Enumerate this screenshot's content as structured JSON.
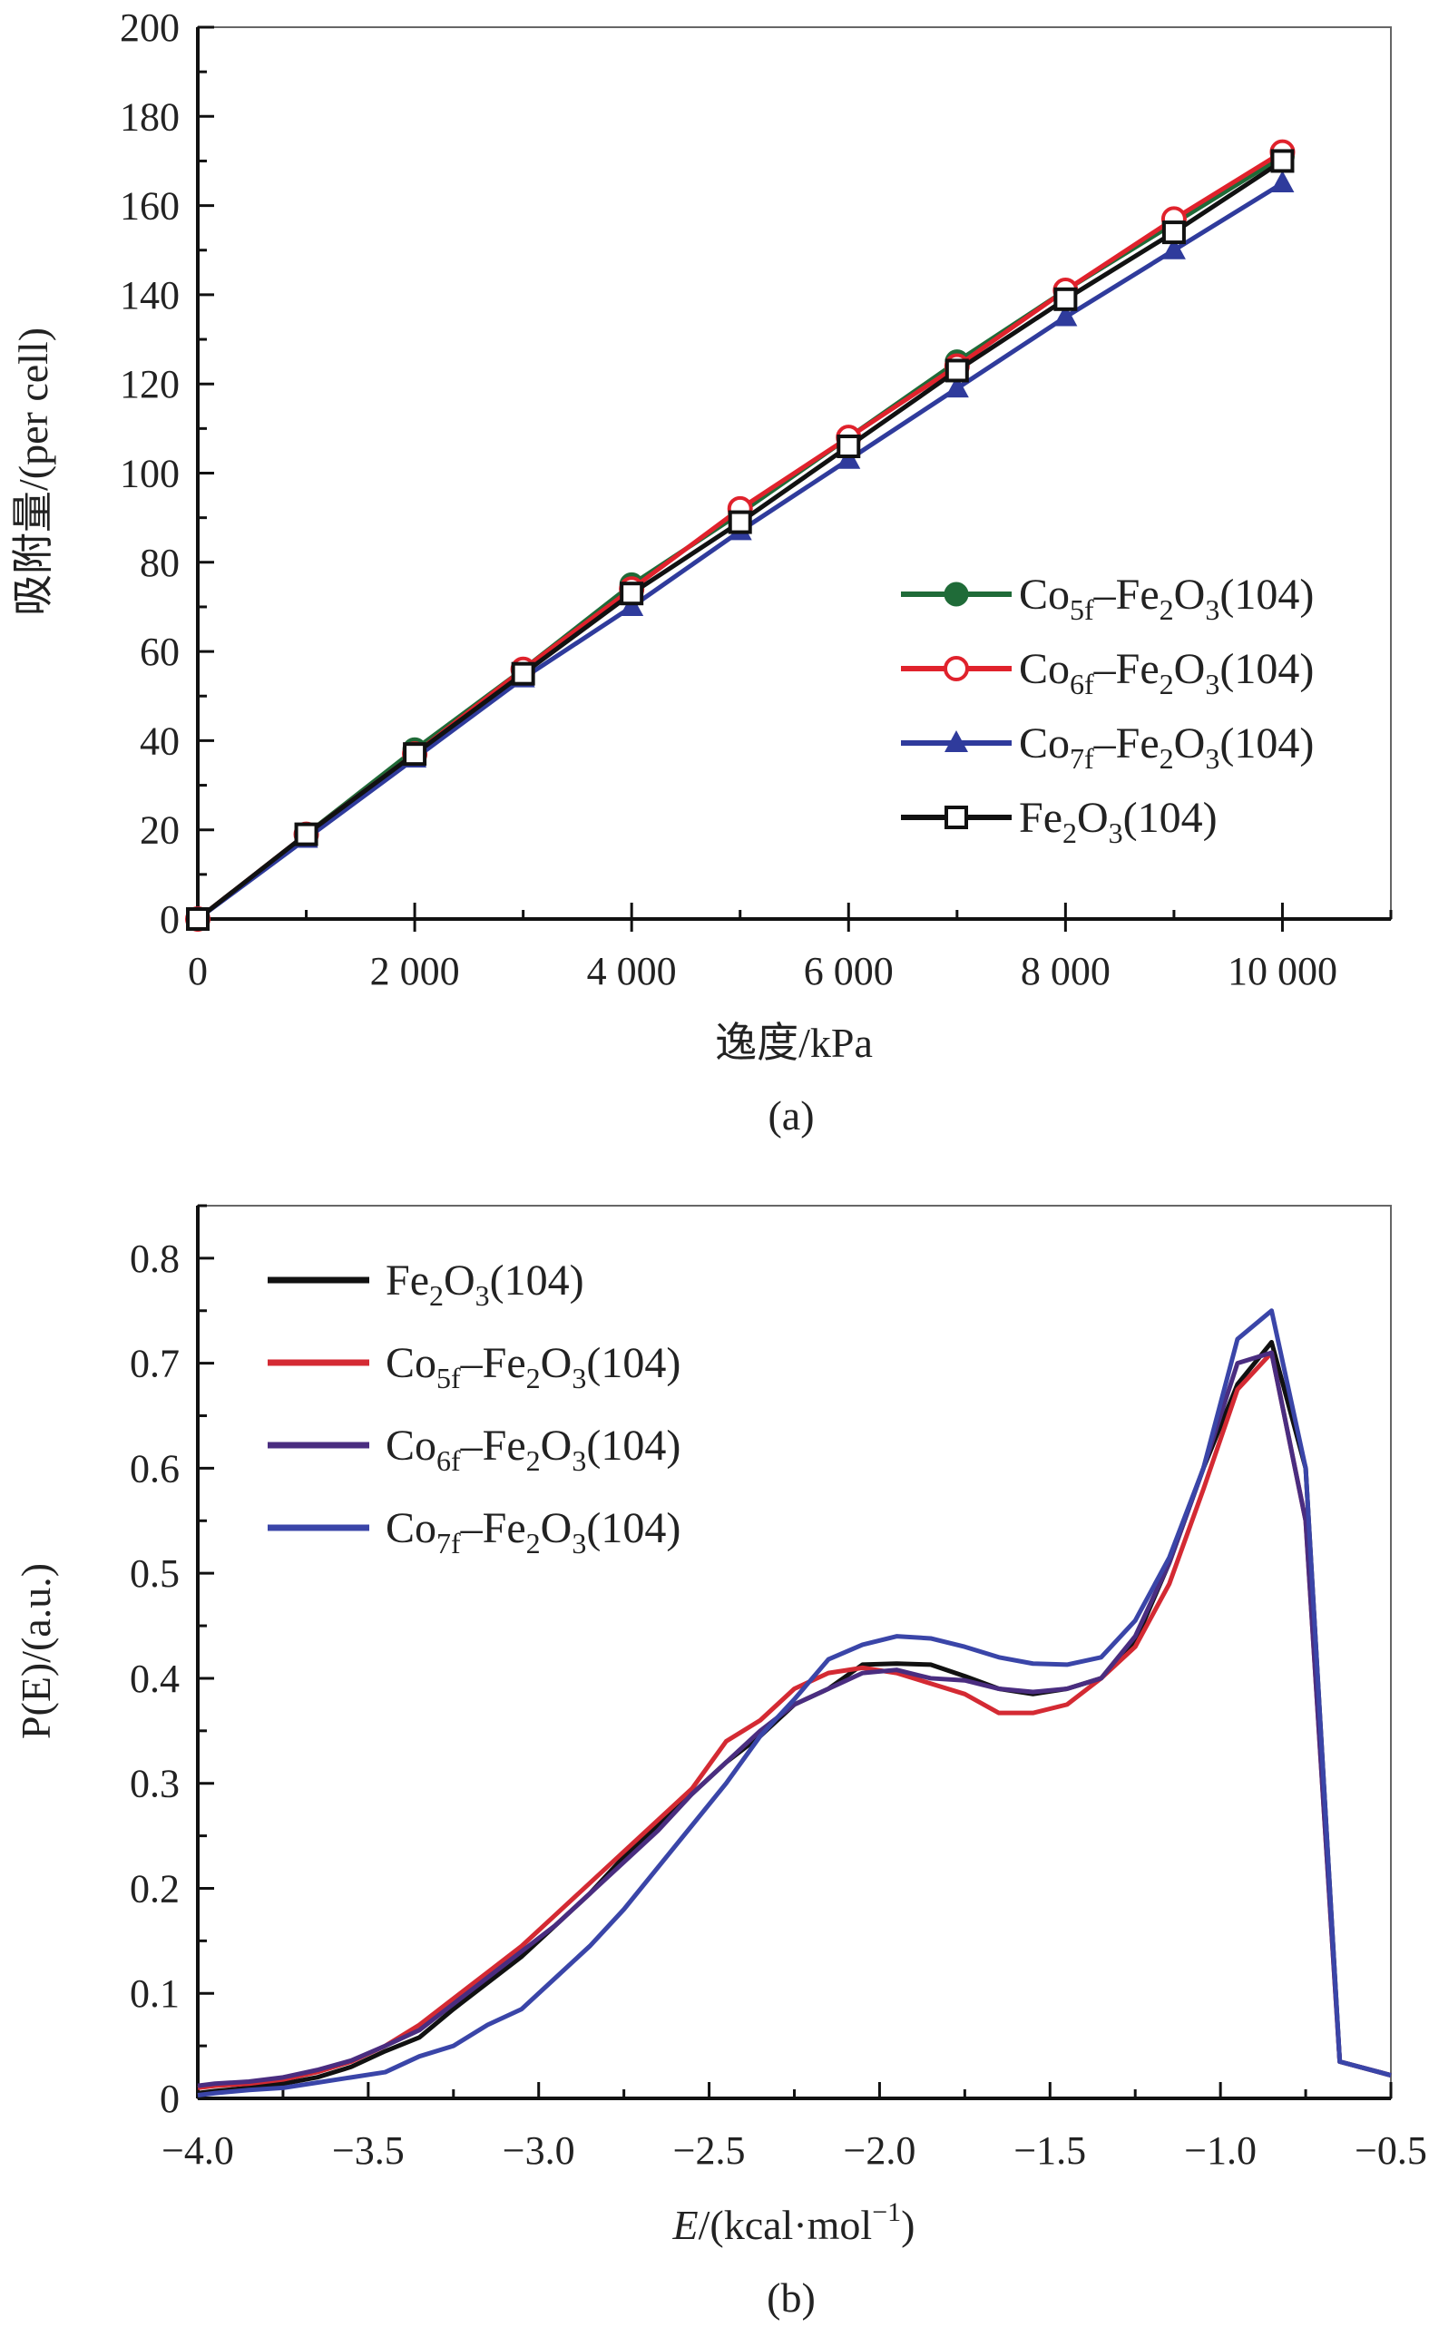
{
  "chart_data": [
    {
      "panel": "(a)",
      "type": "line",
      "xlabel": "逸度/kPa",
      "ylabel": "吸附量/(per cell)",
      "xlim": [
        0,
        11000
      ],
      "ylim": [
        0,
        200
      ],
      "xticks": [
        0,
        2000,
        4000,
        6000,
        8000,
        10000
      ],
      "xtick_labels": [
        "0",
        "2 000",
        "4 000",
        "6 000",
        "8 000",
        "10 000"
      ],
      "yticks": [
        0,
        20,
        40,
        60,
        80,
        100,
        120,
        140,
        160,
        180,
        200
      ],
      "ytick_labels": [
        "0",
        "20",
        "40",
        "60",
        "80",
        "100",
        "120",
        "140",
        "160",
        "180",
        "200"
      ],
      "legend_position": "right",
      "x": [
        0,
        1000,
        2000,
        3000,
        4000,
        5000,
        6000,
        7000,
        8000,
        9000,
        10000
      ],
      "series": [
        {
          "name": "Co5f–Fe2O3(104)",
          "color": "#1f6b38",
          "marker": "filled-circle",
          "values": [
            0,
            19,
            38,
            56,
            75,
            91,
            108,
            125,
            141,
            156,
            171
          ]
        },
        {
          "name": "Co6f–Fe2O3(104)",
          "color": "#e0222c",
          "marker": "open-circle",
          "values": [
            0,
            19,
            37,
            56,
            74,
            92,
            108,
            124,
            141,
            157,
            172
          ]
        },
        {
          "name": "Co7f–Fe2O3(104)",
          "color": "#2f3b9c",
          "marker": "filled-triangle",
          "values": [
            0,
            18,
            36,
            54,
            70,
            87,
            103,
            119,
            135,
            150,
            165
          ]
        },
        {
          "name": "Fe2O3(104)",
          "color": "#111111",
          "marker": "open-square",
          "values": [
            0,
            19,
            37,
            55,
            73,
            89,
            106,
            123,
            139,
            154,
            170
          ]
        }
      ]
    },
    {
      "panel": "(b)",
      "type": "line",
      "xlabel": "E/(kcal·mol−1)",
      "ylabel": "P(E)/(a.u.)",
      "xlim": [
        -4.0,
        -0.5
      ],
      "ylim": [
        0,
        0.85
      ],
      "xticks": [
        -4.0,
        -3.5,
        -3.0,
        -2.5,
        -2.0,
        -1.5,
        -1.0,
        -0.5
      ],
      "xtick_labels": [
        "−4.0",
        "−3.5",
        "−3.0",
        "−2.5",
        "−2.0",
        "−1.5",
        "−1.0",
        "−0.5"
      ],
      "yticks": [
        0,
        0.1,
        0.2,
        0.3,
        0.4,
        0.5,
        0.6,
        0.7,
        0.8
      ],
      "ytick_labels": [
        "0",
        "0.1",
        "0.2",
        "0.3",
        "0.4",
        "0.5",
        "0.6",
        "0.7",
        "0.8"
      ],
      "legend_position": "top-left",
      "x": [
        -4.0,
        -3.95,
        -3.85,
        -3.75,
        -3.65,
        -3.55,
        -3.45,
        -3.35,
        -3.25,
        -3.15,
        -3.05,
        -2.95,
        -2.85,
        -2.75,
        -2.65,
        -2.55,
        -2.45,
        -2.35,
        -2.25,
        -2.15,
        -2.05,
        -1.95,
        -1.85,
        -1.75,
        -1.65,
        -1.55,
        -1.45,
        -1.35,
        -1.25,
        -1.15,
        -1.05,
        -0.95,
        -0.85,
        -0.75,
        -0.65,
        -0.5
      ],
      "series": [
        {
          "name": "Fe2O3(104)",
          "color": "#111111",
          "values": [
            0.005,
            0.007,
            0.01,
            0.014,
            0.02,
            0.03,
            0.045,
            0.058,
            0.085,
            0.11,
            0.135,
            0.165,
            0.195,
            0.23,
            0.26,
            0.29,
            0.32,
            0.345,
            0.375,
            0.39,
            0.413,
            0.414,
            0.413,
            0.402,
            0.39,
            0.385,
            0.39,
            0.4,
            0.435,
            0.51,
            0.6,
            0.68,
            0.72,
            0.6,
            0.035,
            0.022
          ]
        },
        {
          "name": "Co5f–Fe2O3(104)",
          "color": "#d42a33",
          "values": [
            0.01,
            0.012,
            0.014,
            0.018,
            0.025,
            0.035,
            0.05,
            0.07,
            0.095,
            0.12,
            0.145,
            0.175,
            0.205,
            0.235,
            0.265,
            0.295,
            0.34,
            0.36,
            0.39,
            0.405,
            0.41,
            0.405,
            0.395,
            0.385,
            0.367,
            0.367,
            0.375,
            0.4,
            0.43,
            0.49,
            0.58,
            0.675,
            0.71,
            0.55,
            0.035,
            0.022
          ]
        },
        {
          "name": "Co6f–Fe2O3(104)",
          "color": "#4a2d80",
          "values": [
            0.012,
            0.014,
            0.016,
            0.02,
            0.027,
            0.036,
            0.05,
            0.065,
            0.09,
            0.115,
            0.14,
            0.165,
            0.195,
            0.225,
            0.255,
            0.29,
            0.32,
            0.35,
            0.375,
            0.39,
            0.405,
            0.408,
            0.4,
            0.398,
            0.39,
            0.387,
            0.39,
            0.4,
            0.44,
            0.51,
            0.6,
            0.7,
            0.71,
            0.55,
            0.035,
            0.022
          ]
        },
        {
          "name": "Co7f–Fe2O3(104)",
          "color": "#3a45a8",
          "values": [
            0.003,
            0.005,
            0.008,
            0.01,
            0.015,
            0.02,
            0.025,
            0.04,
            0.05,
            0.07,
            0.085,
            0.115,
            0.145,
            0.18,
            0.22,
            0.26,
            0.3,
            0.345,
            0.38,
            0.418,
            0.432,
            0.44,
            0.438,
            0.43,
            0.42,
            0.414,
            0.413,
            0.42,
            0.455,
            0.515,
            0.6,
            0.723,
            0.75,
            0.6,
            0.035,
            0.022
          ]
        }
      ]
    }
  ]
}
